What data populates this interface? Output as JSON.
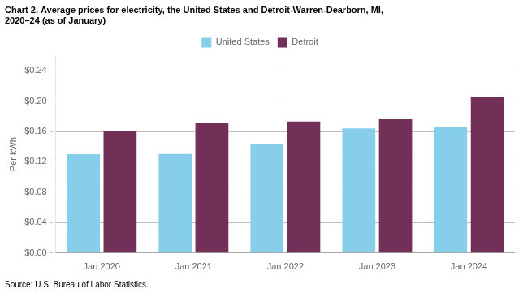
{
  "chart_data": {
    "type": "bar",
    "title": [
      "Chart 2. Average prices for electricity, the United States and Detroit-Warren-Dearborn, MI,",
      "2020–24 (as of January)"
    ],
    "ylabel": "Per kWh",
    "source": "Source: U.S. Bureau of Labor Statistics.",
    "categories": [
      "Jan 2020",
      "Jan 2021",
      "Jan 2022",
      "Jan 2023",
      "Jan 2024"
    ],
    "series": [
      {
        "name": "United States",
        "color": "#87CEEB",
        "values": [
          0.13,
          0.1305,
          0.144,
          0.164,
          0.166
        ]
      },
      {
        "name": "Detroit",
        "color": "#722F57",
        "values": [
          0.161,
          0.171,
          0.173,
          0.176,
          0.206
        ]
      }
    ],
    "ylim": [
      0,
      0.26
    ],
    "yticks": [
      {
        "value": 0.0,
        "label": "$0.00"
      },
      {
        "value": 0.04,
        "label": "$0.04"
      },
      {
        "value": 0.08,
        "label": "$0.08"
      },
      {
        "value": 0.12,
        "label": "$0.12"
      },
      {
        "value": 0.16,
        "label": "$0.16"
      },
      {
        "value": 0.2,
        "label": "$0.20"
      },
      {
        "value": 0.24,
        "label": "$0.24"
      }
    ],
    "grid": true,
    "legend": "top"
  }
}
